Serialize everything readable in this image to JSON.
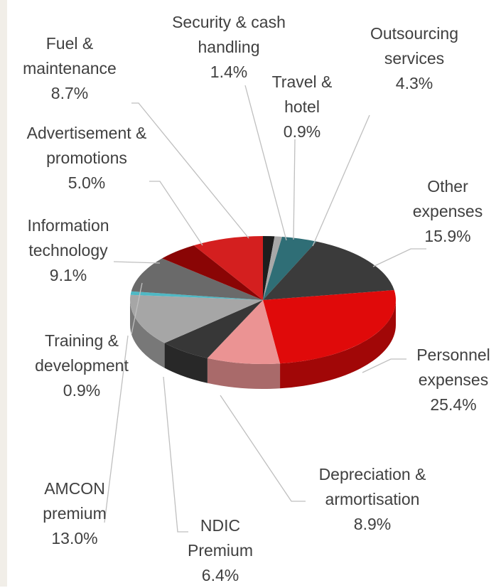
{
  "chart_data": {
    "type": "pie3d",
    "categories": [
      "Security & cash handling",
      "Travel & hotel",
      "Outsourcing services",
      "Other expenses",
      "Personnel expenses",
      "Depreciation & armortisation",
      "NDIC Premium",
      "AMCON premium",
      "Training & development",
      "Information technology",
      "Advertisement & promotions",
      "Fuel & maintenance"
    ],
    "values": [
      1.4,
      0.9,
      4.3,
      15.9,
      25.4,
      8.9,
      6.4,
      13.0,
      0.9,
      9.1,
      5.0,
      8.7
    ],
    "value_labels": [
      "1.4%",
      "0.9%",
      "4.3%",
      "15.9%",
      "25.4%",
      "8.9%",
      "6.4%",
      "13.0%",
      "0.9%",
      "9.1%",
      "5.0%",
      "8.7%"
    ],
    "colors": [
      "#1e1e1e",
      "#a8a8a8",
      "#2f6e76",
      "#3b3b3b",
      "#e00a0a",
      "#eb9393",
      "#373737",
      "#a6a6a6",
      "#4fb8c4",
      "#6a6a6a",
      "#8a0505",
      "#d41f1f"
    ]
  }
}
